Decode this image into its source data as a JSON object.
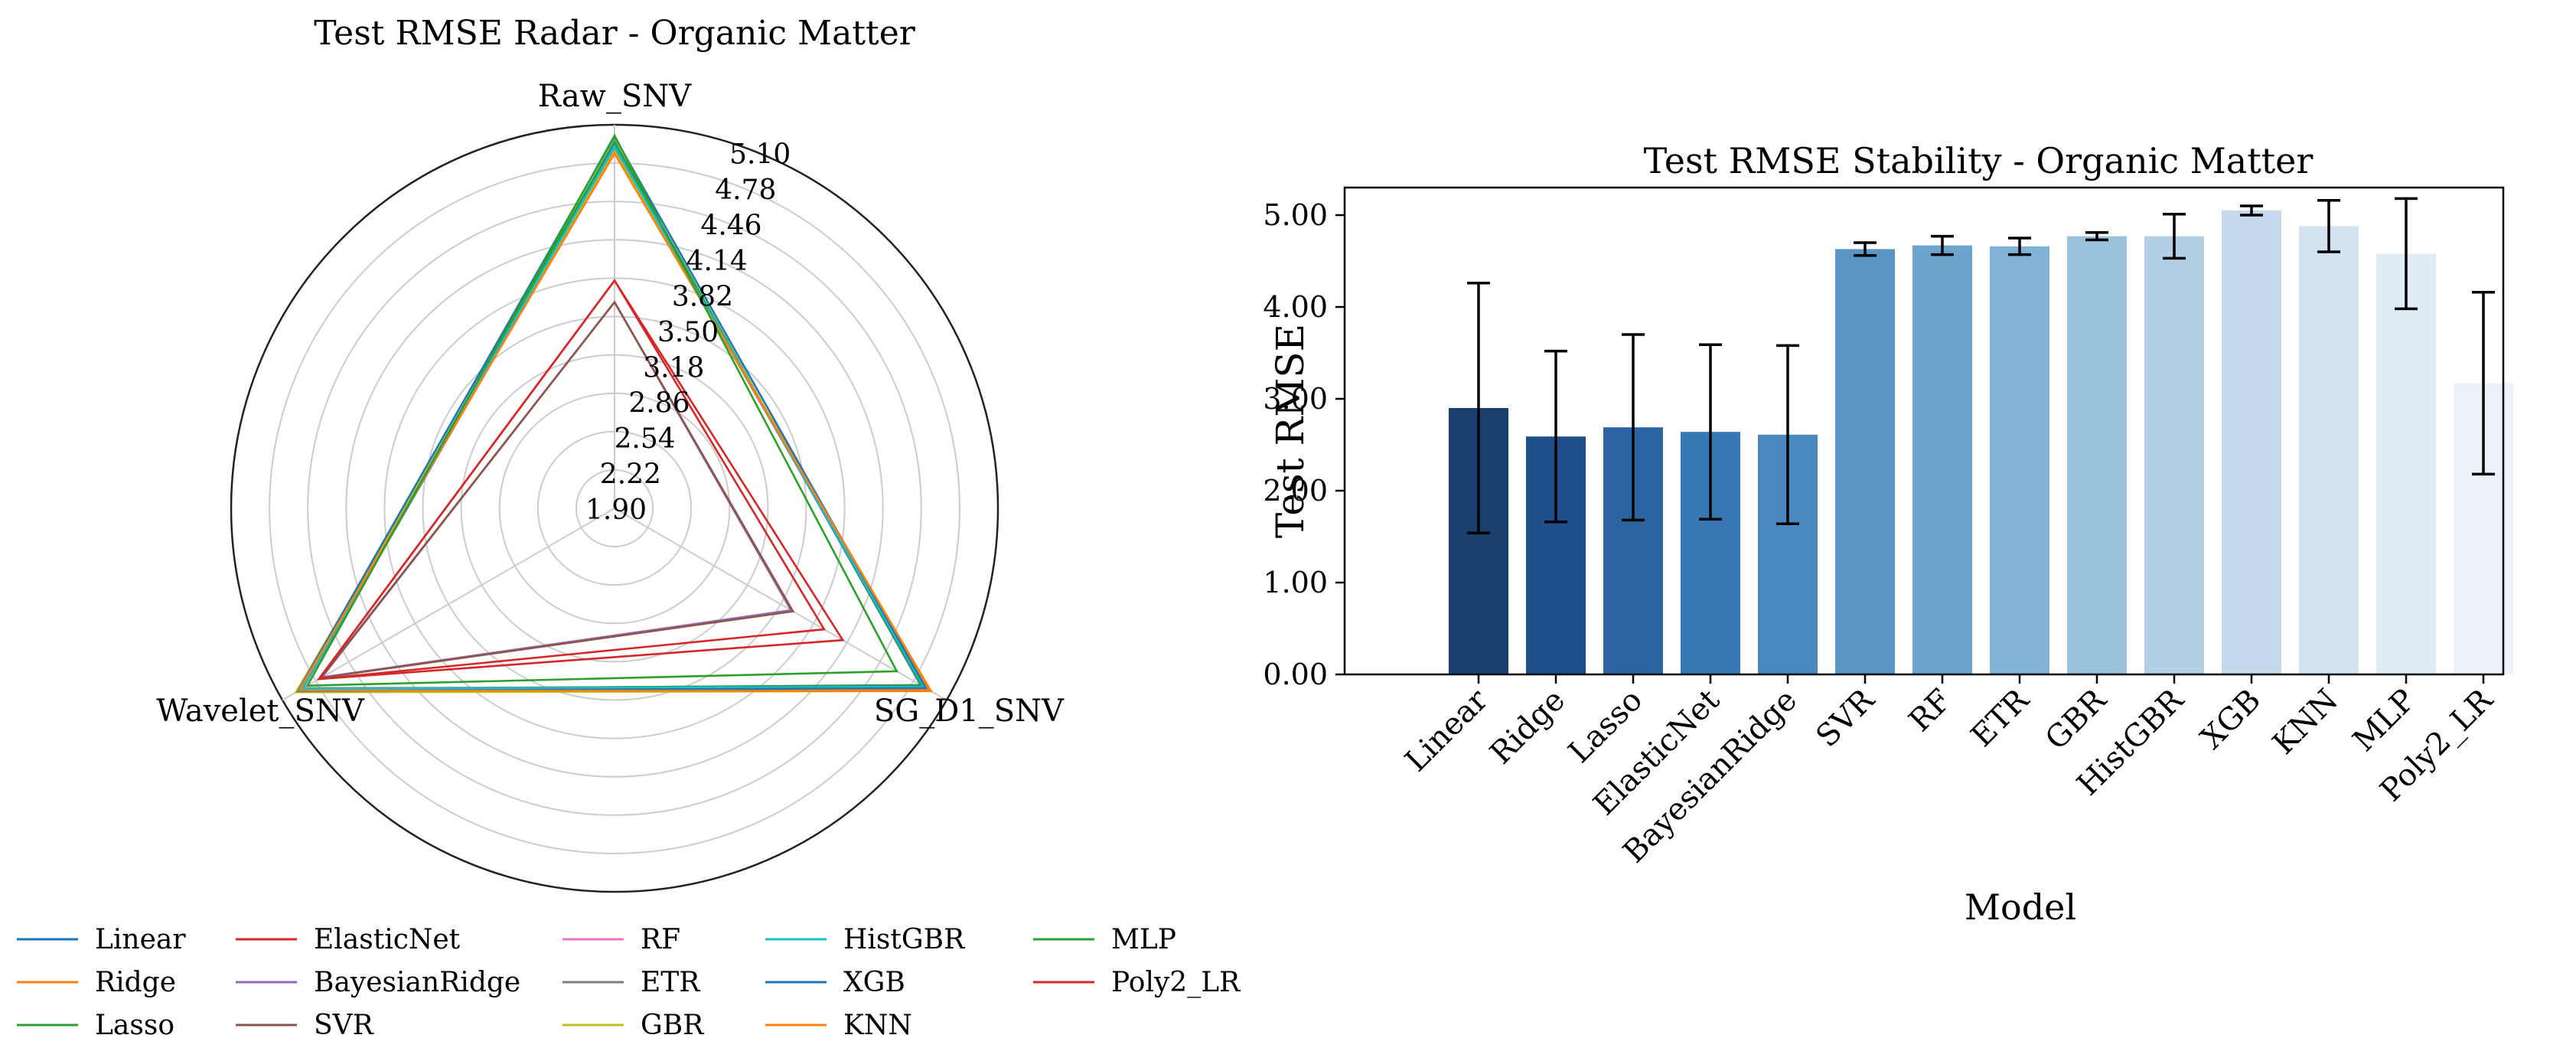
{
  "chart_data": [
    {
      "type": "radar",
      "title": "Test RMSE Radar - Organic Matter",
      "axes": [
        "Raw_SNV",
        "SG_D1_SNV",
        "Wavelet_SNV"
      ],
      "radial_range": [
        1.9,
        5.1
      ],
      "radial_ticks": [
        "1.90",
        "2.22",
        "2.54",
        "2.86",
        "3.18",
        "3.50",
        "3.82",
        "4.14",
        "4.46",
        "4.78",
        "5.10"
      ],
      "series": [
        {
          "name": "Linear",
          "color": "#1f77b4",
          "values": [
            4.95,
            4.85,
            4.92
          ]
        },
        {
          "name": "Ridge",
          "color": "#ff7f0e",
          "values": [
            4.87,
            4.93,
            4.95
          ]
        },
        {
          "name": "Lasso",
          "color": "#2ca02c",
          "values": [
            4.96,
            4.86,
            4.91
          ]
        },
        {
          "name": "ElasticNet",
          "color": "#d62728",
          "values": [
            3.8,
            3.92,
            4.75
          ]
        },
        {
          "name": "BayesianRidge",
          "color": "#9467bd",
          "values": [
            3.62,
            3.6,
            4.72
          ]
        },
        {
          "name": "SVR",
          "color": "#8c564b",
          "values": [
            3.62,
            3.62,
            4.73
          ]
        },
        {
          "name": "RF",
          "color": "#e377c2",
          "values": [
            4.9,
            4.9,
            4.92
          ]
        },
        {
          "name": "ETR",
          "color": "#7f7f7f",
          "values": [
            4.89,
            4.89,
            4.9
          ]
        },
        {
          "name": "GBR",
          "color": "#bcbd22",
          "values": [
            4.88,
            4.95,
            4.97
          ]
        },
        {
          "name": "HistGBR",
          "color": "#17becf",
          "values": [
            4.92,
            4.88,
            4.91
          ]
        },
        {
          "name": "XGB",
          "color": "#1f77b4",
          "values": [
            5.0,
            4.9,
            4.95
          ]
        },
        {
          "name": "KNN",
          "color": "#ff7f0e",
          "values": [
            4.86,
            4.95,
            4.94
          ]
        },
        {
          "name": "MLP",
          "color": "#2ca02c",
          "values": [
            5.01,
            4.62,
            4.86
          ]
        },
        {
          "name": "Poly2_LR",
          "color": "#d62728",
          "values": [
            3.8,
            4.1,
            4.75
          ]
        }
      ]
    },
    {
      "type": "bar",
      "title": "Test RMSE Stability - Organic Matter",
      "xlabel": "Model",
      "ylabel": "Test RMSE",
      "ylim": [
        0,
        5.3
      ],
      "yticks": [
        "0.00",
        "1.00",
        "2.00",
        "3.00",
        "4.00",
        "5.00"
      ],
      "categories": [
        "Linear",
        "Ridge",
        "Lasso",
        "ElasticNet",
        "BayesianRidge",
        "SVR",
        "RF",
        "ETR",
        "GBR",
        "HistGBR",
        "XGB",
        "KNN",
        "MLP",
        "Poly2_LR"
      ],
      "values": [
        2.9,
        2.59,
        2.69,
        2.64,
        2.61,
        4.63,
        4.67,
        4.66,
        4.77,
        4.77,
        5.05,
        4.88,
        4.58,
        3.17
      ],
      "error": [
        1.36,
        0.93,
        1.01,
        0.95,
        0.97,
        0.07,
        0.1,
        0.09,
        0.04,
        0.24,
        0.05,
        0.28,
        0.6,
        0.99
      ],
      "bar_colors": [
        "#183f6e",
        "#1f4f8a",
        "#2b64a0",
        "#3878b2",
        "#4a89bf",
        "#5a95c4",
        "#6ba4cc",
        "#80b3d5",
        "#9ac2dd",
        "#b2cfe3",
        "#c4d9ec",
        "#d3e3f1",
        "#e1ebf6",
        "#ecf2fa"
      ]
    }
  ]
}
